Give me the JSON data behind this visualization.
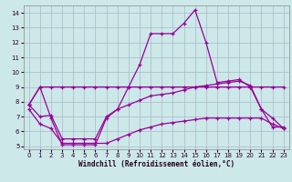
{
  "bg_color": "#cce8e8",
  "grid_color": "#aab8cc",
  "line_color": "#990099",
  "xlabel": "Windchill (Refroidissement éolien,°C)",
  "xlim": [
    -0.5,
    23.5
  ],
  "ylim": [
    4.8,
    14.5
  ],
  "yticks": [
    5,
    6,
    7,
    8,
    9,
    10,
    11,
    12,
    13,
    14
  ],
  "xticks": [
    0,
    1,
    2,
    3,
    4,
    5,
    6,
    7,
    8,
    9,
    10,
    11,
    12,
    13,
    14,
    15,
    16,
    17,
    18,
    19,
    20,
    21,
    22,
    23
  ],
  "line1_x": [
    0,
    1,
    2,
    3,
    4,
    5,
    6,
    7,
    8,
    9,
    10,
    11,
    12,
    13,
    14,
    15,
    16,
    17,
    18,
    19,
    20,
    21,
    22,
    23
  ],
  "line1_y": [
    7.8,
    9.0,
    6.9,
    5.1,
    5.1,
    5.1,
    5.1,
    6.9,
    7.5,
    9.0,
    10.5,
    12.6,
    12.6,
    12.6,
    13.3,
    14.2,
    12.0,
    9.3,
    9.4,
    9.5,
    9.0,
    7.5,
    6.9,
    6.2
  ],
  "line2_x": [
    0,
    1,
    2,
    3,
    4,
    5,
    6,
    7,
    8,
    9,
    10,
    11,
    12,
    13,
    14,
    15,
    16,
    17,
    18,
    19,
    20,
    21,
    22,
    23
  ],
  "line2_y": [
    7.8,
    9.0,
    9.0,
    9.0,
    9.0,
    9.0,
    9.0,
    9.0,
    9.0,
    9.0,
    9.0,
    9.0,
    9.0,
    9.0,
    9.0,
    9.0,
    9.0,
    9.0,
    9.0,
    9.0,
    9.0,
    9.0,
    9.0,
    9.0
  ],
  "line3_x": [
    0,
    1,
    2,
    3,
    4,
    5,
    6,
    7,
    8,
    9,
    10,
    11,
    12,
    13,
    14,
    15,
    16,
    17,
    18,
    19,
    20,
    21,
    22,
    23
  ],
  "line3_y": [
    7.8,
    7.0,
    7.1,
    5.5,
    5.5,
    5.5,
    5.5,
    7.0,
    7.5,
    7.8,
    8.1,
    8.4,
    8.5,
    8.6,
    8.8,
    9.0,
    9.1,
    9.2,
    9.3,
    9.4,
    9.1,
    7.5,
    6.3,
    6.3
  ],
  "line4_x": [
    0,
    1,
    2,
    3,
    4,
    5,
    6,
    7,
    8,
    9,
    10,
    11,
    12,
    13,
    14,
    15,
    16,
    17,
    18,
    19,
    20,
    21,
    22,
    23
  ],
  "line4_y": [
    7.5,
    6.5,
    6.2,
    5.2,
    5.2,
    5.2,
    5.2,
    5.2,
    5.5,
    5.8,
    6.1,
    6.3,
    6.5,
    6.6,
    6.7,
    6.8,
    6.9,
    6.9,
    6.9,
    6.9,
    6.9,
    6.9,
    6.5,
    6.2
  ]
}
